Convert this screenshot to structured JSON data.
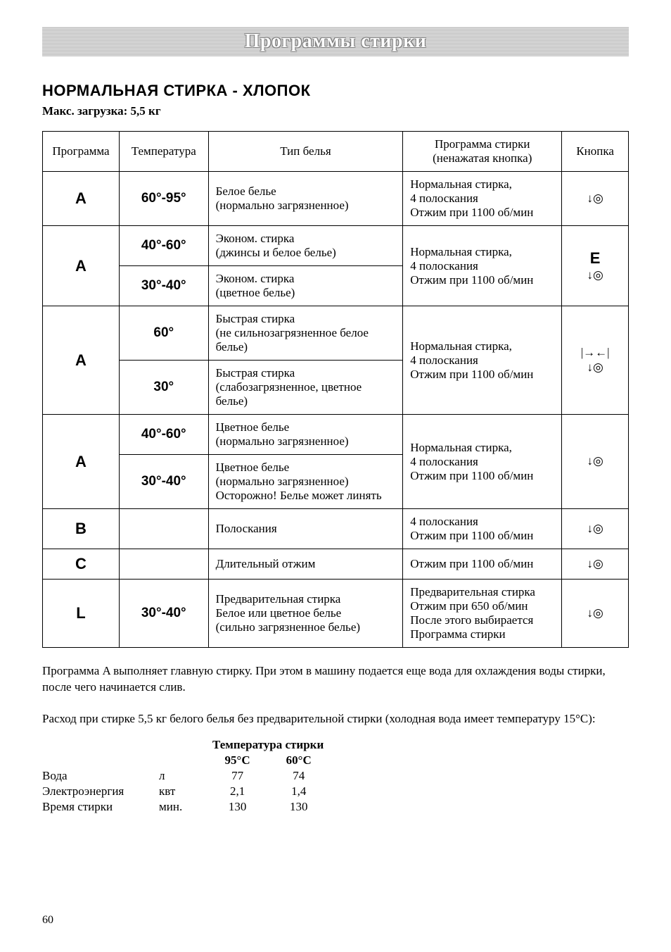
{
  "banner_title": "Программы стирки",
  "section_heading": "НОРМАЛЬНАЯ СТИРКА - ХЛОПОК",
  "max_load_label": "Макс. загрузка:",
  "max_load_value": "5,5 кг",
  "table": {
    "headers": {
      "program": "Программа",
      "temperature": "Температура",
      "linen_type": "Тип белья",
      "wash_program": "Программа стирки\n(ненажатая кнопка)",
      "button": "Кнопка"
    },
    "rows": [
      {
        "prog": "A",
        "temp": "60°-95°",
        "tip": "Белое белье\n(нормально загрязненное)",
        "wash": "Нормальная стирка,\n4 полоскания\nОтжим при 1100 об/мин",
        "btn": {
          "icons": [
            "↓◎"
          ]
        }
      },
      {
        "prog": "A",
        "prog_rowspan": 2,
        "temp": "40°-60°",
        "tip": "Эконом. стирка\n(джинсы и белое белье)",
        "wash": "Нормальная стирка,\n4 полоскания\nОтжим при 1100 об/мин",
        "wash_rowspan": 2,
        "btn": {
          "letter": "E",
          "icons": [
            "↓◎"
          ],
          "rowspan": 2
        }
      },
      {
        "temp": "30°-40°",
        "tip": "Эконом. стирка\n(цветное белье)"
      },
      {
        "prog": "A",
        "prog_rowspan": 2,
        "temp": "60°",
        "tip": "Быстрая стирка\n(не сильнозагрязненное белое белье)",
        "wash": "Нормальная стирка,\n4 полоскания\nОтжим при 1100 об/мин",
        "wash_rowspan": 2,
        "btn": {
          "icons": [
            "|→←|",
            "↓◎"
          ],
          "rowspan": 2
        }
      },
      {
        "temp": "30°",
        "tip": "Быстрая стирка\n(слабозагрязненное, цветное белье)"
      },
      {
        "prog": "A",
        "prog_rowspan": 2,
        "temp": "40°-60°",
        "tip": "Цветное белье\n(нормально загрязненное)",
        "wash": "Нормальная стирка,\n4 полоскания\nОтжим при 1100 об/мин",
        "wash_rowspan": 2,
        "btn": {
          "icons": [
            "↓◎"
          ],
          "rowspan": 2
        }
      },
      {
        "temp": "30°-40°",
        "tip": "Цветное белье\n(нормально загрязненное)\nОсторожно! Белье может линять"
      },
      {
        "prog": "B",
        "temp": "",
        "tip": "Полоскания",
        "wash": "4 полоскания\nОтжим при 1100 об/мин",
        "btn": {
          "icons": [
            "↓◎"
          ]
        }
      },
      {
        "prog": "C",
        "temp": "",
        "tip": "Длительный отжим",
        "wash": "Отжим при 1100 об/мин",
        "btn": {
          "icons": [
            "↓◎"
          ]
        }
      },
      {
        "prog": "L",
        "temp": "30°-40°",
        "tip": "Предварительная стирка\nБелое или цветное белье\n(сильно загрязненное белье)",
        "wash": "Предварительная стирка\nОтжим при 650 об/мин\nПосле этого выбирается\nПрограмма стирки",
        "btn": {
          "icons": [
            "↓◎"
          ]
        }
      }
    ]
  },
  "note1": "Программа A выполняет главную стирку. При этом в машину подается еще вода для охлаждения воды стирки, после чего начинается слив.",
  "note2": "Расход при стирке 5,5 кг белого белья без предварительной стирки (холодная вода имеет температуру 15°C):",
  "consumption": {
    "title": "Температура стирки",
    "columns": [
      "95°C",
      "60°C"
    ],
    "rows": [
      {
        "label": "Вода",
        "unit": "л",
        "values": [
          "77",
          "74"
        ]
      },
      {
        "label": "Электроэнергия",
        "unit": "квт",
        "values": [
          "2,1",
          "1,4"
        ]
      },
      {
        "label": "Время стирки",
        "unit": "мин.",
        "values": [
          "130",
          "130"
        ]
      }
    ]
  },
  "page_number": "60"
}
